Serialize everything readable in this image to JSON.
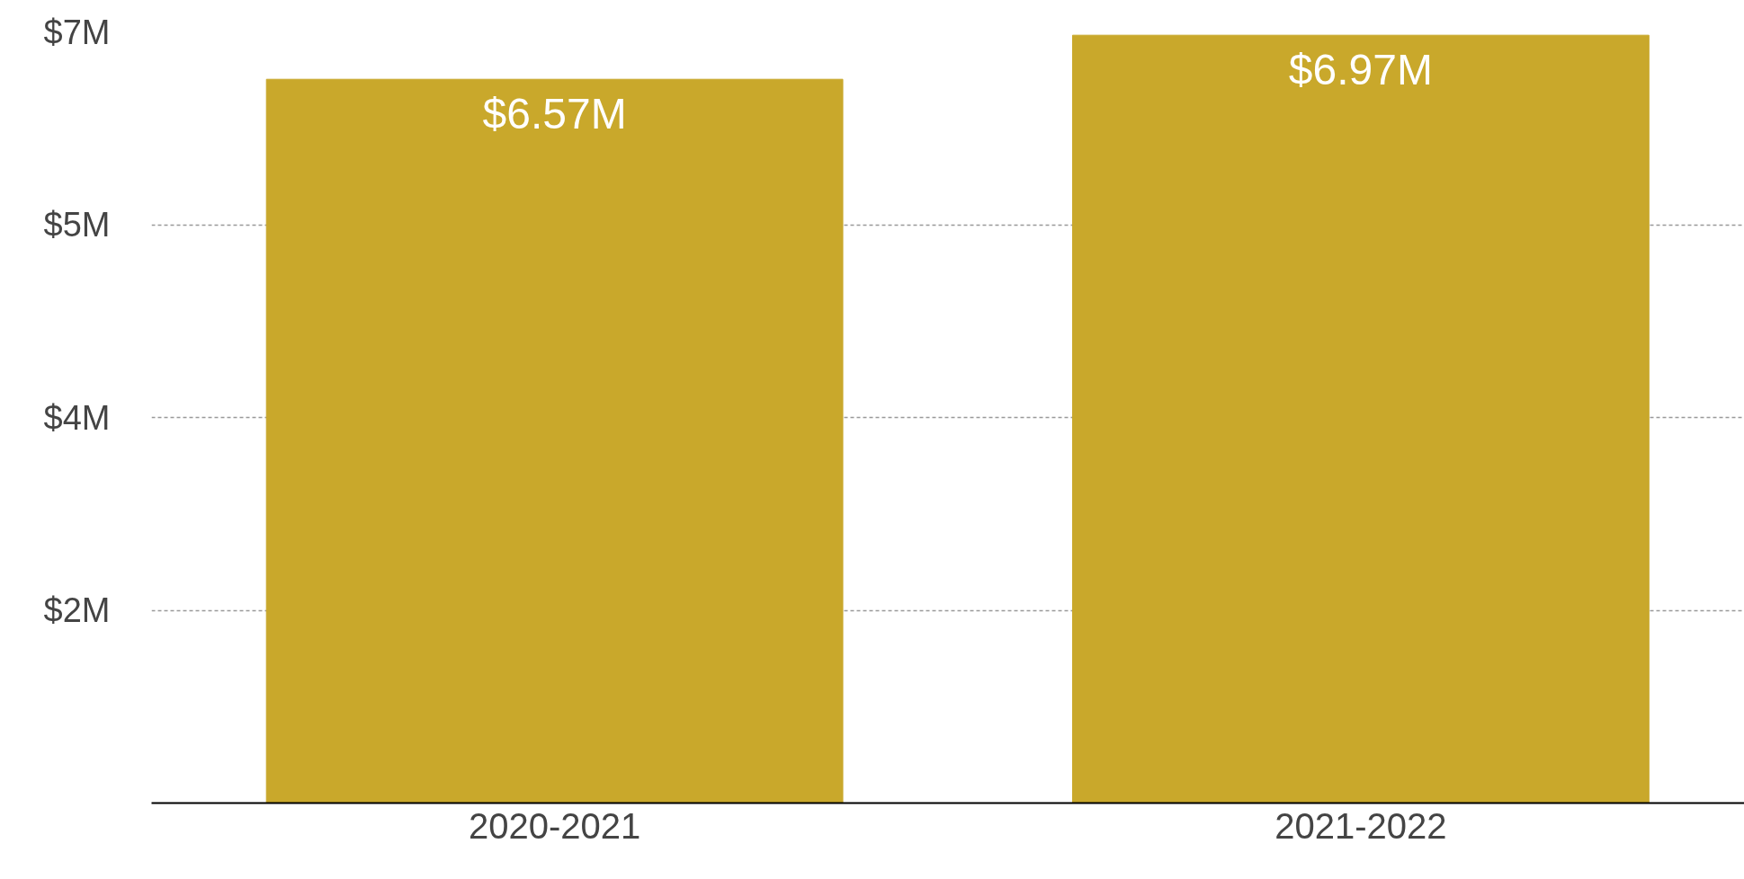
{
  "chart_data": {
    "type": "bar",
    "categories": [
      "2020-2021",
      "2021-2022"
    ],
    "values": [
      6.57,
      6.97
    ],
    "value_labels": [
      "$6.57M",
      "$6.97M"
    ],
    "color": "#c9a82b",
    "ylim": [
      0,
      7
    ],
    "yticks": [
      {
        "value": 1.75,
        "label": "$2M"
      },
      {
        "value": 3.5,
        "label": "$4M"
      },
      {
        "value": 5.25,
        "label": "$5M"
      },
      {
        "value": 7,
        "label": "$7M"
      }
    ],
    "grid": "y"
  }
}
